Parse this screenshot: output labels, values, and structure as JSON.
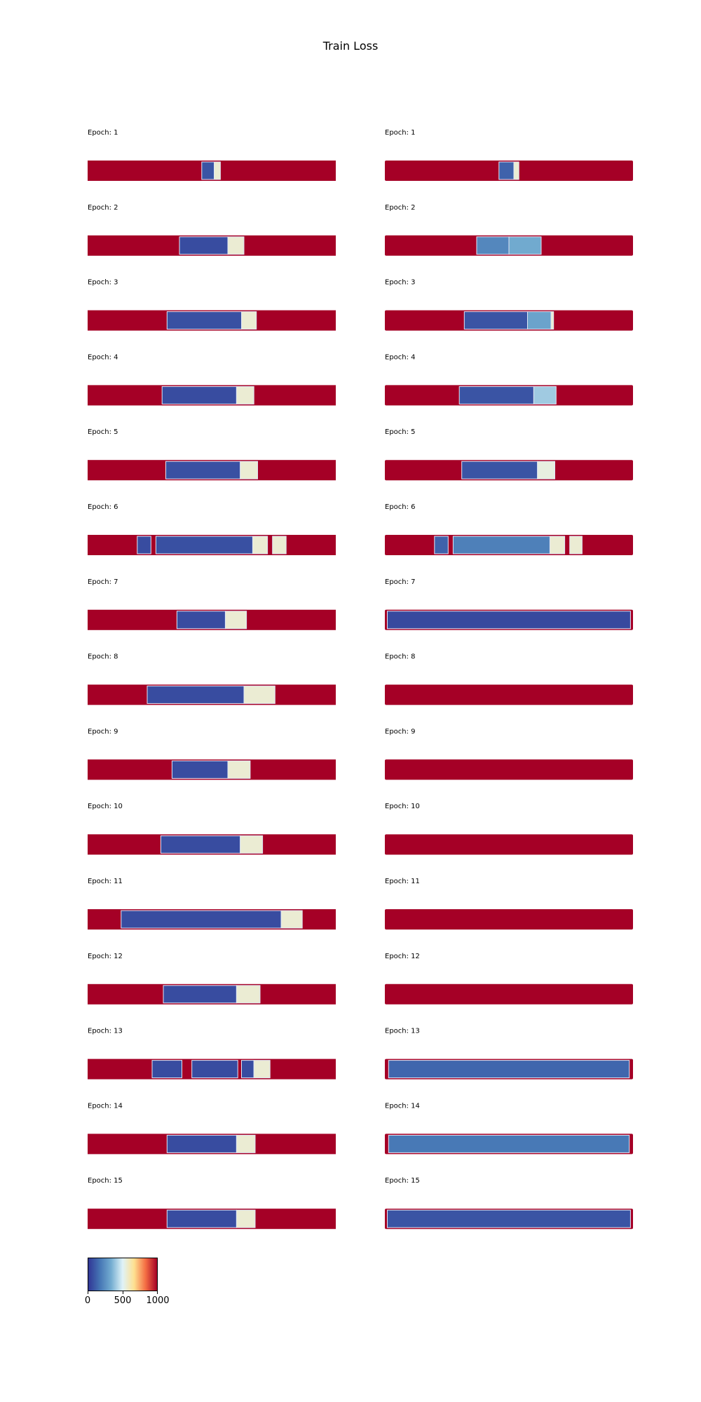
{
  "title": "Train Loss",
  "chart_data": {
    "type": "heatmap",
    "title": "Train Loss",
    "colormap": "RdYlBu_r",
    "value_range": [
      0,
      1000
    ],
    "colorbar_ticks": [
      "0",
      "500",
      "1000"
    ],
    "colors": {
      "high": "#a50026",
      "low": "#3a4fa2",
      "light_blue": "#74add1",
      "cream": "#fee8a0"
    },
    "columns": [
      {
        "panels": [
          {
            "label": "Epoch: 1",
            "segments": [
              {
                "start": 0.46,
                "end": 0.51,
                "value": 80
              },
              {
                "start": 0.51,
                "end": 0.535,
                "value": 560
              }
            ]
          },
          {
            "label": "Epoch: 2",
            "segments": [
              {
                "start": 0.37,
                "end": 0.565,
                "value": 60
              },
              {
                "start": 0.565,
                "end": 0.63,
                "value": 560
              }
            ]
          },
          {
            "label": "Epoch: 3",
            "segments": [
              {
                "start": 0.32,
                "end": 0.62,
                "value": 70
              },
              {
                "start": 0.62,
                "end": 0.68,
                "value": 560
              }
            ]
          },
          {
            "label": "Epoch: 4",
            "segments": [
              {
                "start": 0.3,
                "end": 0.6,
                "value": 60
              },
              {
                "start": 0.6,
                "end": 0.67,
                "value": 560
              }
            ]
          },
          {
            "label": "Epoch: 5",
            "segments": [
              {
                "start": 0.315,
                "end": 0.615,
                "value": 70
              },
              {
                "start": 0.615,
                "end": 0.685,
                "value": 560
              }
            ]
          },
          {
            "label": "Epoch: 6",
            "segments": [
              {
                "start": 0.2,
                "end": 0.255,
                "value": 60
              },
              {
                "start": 0.275,
                "end": 0.665,
                "value": 70
              },
              {
                "start": 0.665,
                "end": 0.725,
                "value": 560
              },
              {
                "start": 0.745,
                "end": 0.8,
                "value": 560
              }
            ]
          },
          {
            "label": "Epoch: 7",
            "segments": [
              {
                "start": 0.36,
                "end": 0.555,
                "value": 60
              },
              {
                "start": 0.555,
                "end": 0.64,
                "value": 560
              }
            ]
          },
          {
            "label": "Epoch: 8",
            "segments": [
              {
                "start": 0.24,
                "end": 0.63,
                "value": 60
              },
              {
                "start": 0.63,
                "end": 0.755,
                "value": 560
              }
            ]
          },
          {
            "label": "Epoch: 9",
            "segments": [
              {
                "start": 0.34,
                "end": 0.565,
                "value": 60
              },
              {
                "start": 0.565,
                "end": 0.655,
                "value": 560
              }
            ]
          },
          {
            "label": "Epoch: 10",
            "segments": [
              {
                "start": 0.295,
                "end": 0.615,
                "value": 60
              },
              {
                "start": 0.615,
                "end": 0.705,
                "value": 560
              }
            ]
          },
          {
            "label": "Epoch: 11",
            "segments": [
              {
                "start": 0.135,
                "end": 0.78,
                "value": 60
              },
              {
                "start": 0.78,
                "end": 0.865,
                "value": 560
              }
            ]
          },
          {
            "label": "Epoch: 12",
            "segments": [
              {
                "start": 0.305,
                "end": 0.6,
                "value": 60
              },
              {
                "start": 0.6,
                "end": 0.695,
                "value": 560
              }
            ]
          },
          {
            "label": "Epoch: 13",
            "segments": [
              {
                "start": 0.26,
                "end": 0.38,
                "value": 60
              },
              {
                "start": 0.42,
                "end": 0.605,
                "value": 60
              },
              {
                "start": 0.62,
                "end": 0.67,
                "value": 60
              },
              {
                "start": 0.67,
                "end": 0.735,
                "value": 560
              }
            ]
          },
          {
            "label": "Epoch: 14",
            "segments": [
              {
                "start": 0.32,
                "end": 0.6,
                "value": 60
              },
              {
                "start": 0.6,
                "end": 0.675,
                "value": 560
              }
            ]
          },
          {
            "label": "Epoch: 15",
            "segments": [
              {
                "start": 0.32,
                "end": 0.6,
                "value": 60
              },
              {
                "start": 0.6,
                "end": 0.675,
                "value": 560
              }
            ]
          }
        ]
      },
      {
        "panels": [
          {
            "label": "Epoch: 1",
            "segments": [
              {
                "start": 0.46,
                "end": 0.52,
                "value": 120
              },
              {
                "start": 0.52,
                "end": 0.54,
                "value": 560
              }
            ]
          },
          {
            "label": "Epoch: 2",
            "segments": [
              {
                "start": 0.37,
                "end": 0.5,
                "value": 220
              },
              {
                "start": 0.5,
                "end": 0.63,
                "value": 320
              }
            ]
          },
          {
            "label": "Epoch: 3",
            "segments": [
              {
                "start": 0.32,
                "end": 0.575,
                "value": 80
              },
              {
                "start": 0.575,
                "end": 0.67,
                "value": 300
              },
              {
                "start": 0.67,
                "end": 0.68,
                "value": 560
              }
            ]
          },
          {
            "label": "Epoch: 4",
            "segments": [
              {
                "start": 0.3,
                "end": 0.6,
                "value": 80
              },
              {
                "start": 0.6,
                "end": 0.69,
                "value": 400
              }
            ]
          },
          {
            "label": "Epoch: 5",
            "segments": [
              {
                "start": 0.31,
                "end": 0.615,
                "value": 80
              },
              {
                "start": 0.615,
                "end": 0.685,
                "value": 540
              }
            ]
          },
          {
            "label": "Epoch: 6",
            "segments": [
              {
                "start": 0.2,
                "end": 0.255,
                "value": 120
              },
              {
                "start": 0.275,
                "end": 0.665,
                "value": 200
              },
              {
                "start": 0.665,
                "end": 0.725,
                "value": 560
              },
              {
                "start": 0.745,
                "end": 0.795,
                "value": 560
              }
            ]
          },
          {
            "label": "Epoch: 7",
            "segments": [
              {
                "start": 0.01,
                "end": 0.99,
                "value": 50
              }
            ]
          },
          {
            "label": "Epoch: 8",
            "segments": []
          },
          {
            "label": "Epoch: 9",
            "segments": []
          },
          {
            "label": "Epoch: 10",
            "segments": []
          },
          {
            "label": "Epoch: 11",
            "segments": []
          },
          {
            "label": "Epoch: 12",
            "segments": []
          },
          {
            "label": "Epoch: 13",
            "segments": [
              {
                "start": 0.015,
                "end": 0.985,
                "value": 130
              }
            ]
          },
          {
            "label": "Epoch: 14",
            "segments": [
              {
                "start": 0.015,
                "end": 0.985,
                "value": 180
              }
            ]
          },
          {
            "label": "Epoch: 15",
            "segments": [
              {
                "start": 0.01,
                "end": 0.99,
                "value": 80
              }
            ]
          }
        ]
      }
    ]
  }
}
